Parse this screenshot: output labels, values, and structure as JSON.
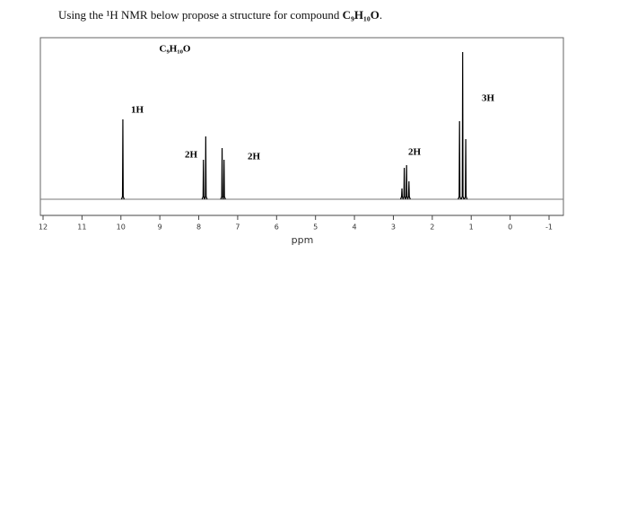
{
  "question": {
    "text": "Using the ¹H NMR below propose a structure for compound ",
    "compound": "C₉H₁₀O",
    "end": "."
  },
  "chart_data": {
    "type": "spectrum",
    "formula_label": "C₉H₁₀O",
    "x_label": "ppm",
    "xlim": [
      12,
      -1
    ],
    "xticks": [
      12,
      11,
      10,
      9,
      8,
      7,
      6,
      5,
      4,
      3,
      2,
      1,
      0,
      -1
    ],
    "annotations": [
      "1H",
      "2H",
      "2H",
      "2H",
      "3H"
    ],
    "color": "#000000",
    "x": [
      9.95,
      7.88,
      7.82,
      7.4,
      7.35,
      2.78,
      2.72,
      2.66,
      2.6,
      1.3,
      1.22,
      1.14
    ],
    "values": [
      89,
      44,
      70,
      57,
      44,
      12,
      35,
      38,
      20,
      87,
      164,
      67
    ]
  }
}
